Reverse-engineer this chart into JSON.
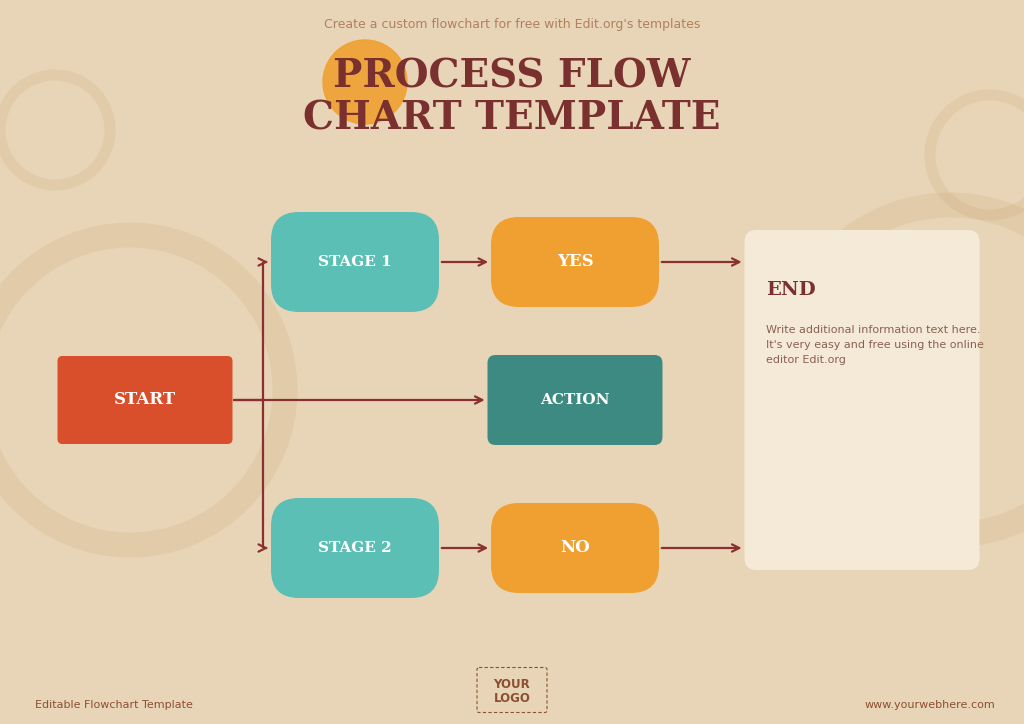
{
  "bg_color": "#e8d5b7",
  "title_line1": "PROCESS FLOW",
  "title_line2": "CHART TEMPLATE",
  "title_color": "#7b3030",
  "title_fontsize": 28,
  "subtitle": "Create a custom flowchart for free with Edit.org's templates",
  "subtitle_color": "#b08060",
  "subtitle_fontsize": 9,
  "start_label": "START",
  "start_color": "#d94f2b",
  "start_text_color": "#ffffff",
  "stage1_label": "STAGE 1",
  "stage1_color": "#5bbfb5",
  "stage1_text_color": "#ffffff",
  "yes_label": "YES",
  "yes_color": "#f0a030",
  "yes_text_color": "#ffffff",
  "action_label": "ACTION",
  "action_color": "#3d8a82",
  "action_text_color": "#ffffff",
  "stage2_label": "STAGE 2",
  "stage2_color": "#5bbfb5",
  "stage2_text_color": "#ffffff",
  "no_label": "NO",
  "no_color": "#f0a030",
  "no_text_color": "#ffffff",
  "end_box_color": "#f5ead8",
  "end_title": "END",
  "end_title_color": "#7b3030",
  "end_text": "Write additional information text here.\nIt's very easy and free using the online\neditor Edit.org",
  "end_text_color": "#8b6050",
  "arrow_color": "#8b3030",
  "footer_left": "Editable Flowchart Template",
  "footer_center_line1": "YOUR",
  "footer_center_line2": "LOGO",
  "footer_right": "www.yourwebhere.com",
  "footer_color": "#8b5030",
  "footer_fontsize": 8,
  "orange_circle_color": "#f0a030",
  "watermark_color": "#cba878"
}
